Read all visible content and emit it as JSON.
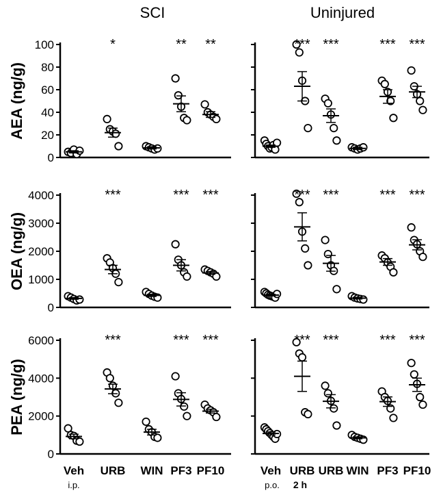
{
  "column_titles": [
    "SCI",
    "Uninjured"
  ],
  "notes": {
    "sci_route": "i.p.",
    "uninjured_route": "p.o.",
    "uninjured_time": "2 h"
  },
  "chart_data": [
    {
      "type": "scatter",
      "group": "SCI",
      "ylabel": "AEA (ng/g)",
      "ylim": [
        0,
        100
      ],
      "yticks": [
        "0",
        "20",
        "40",
        "60",
        "80",
        "100"
      ],
      "categories": [
        "Veh",
        "URB",
        "WIN",
        "PF3",
        "PF10"
      ],
      "points": [
        [
          5,
          4,
          7,
          3,
          6
        ],
        [
          34,
          25,
          23,
          21,
          10
        ],
        [
          10,
          9,
          8,
          7,
          8
        ],
        [
          70,
          55,
          45,
          35,
          33
        ],
        [
          47,
          40,
          38,
          36,
          34
        ]
      ],
      "mean": [
        5,
        22,
        8.5,
        47.5,
        38
      ],
      "sem": [
        1,
        4,
        1,
        7,
        2.5
      ],
      "significance": [
        "",
        "*",
        "",
        "**",
        "**"
      ]
    },
    {
      "type": "scatter",
      "group": "Uninjured",
      "ylabel": "AEA (ng/g)",
      "ylim": [
        0,
        100
      ],
      "yticks": [
        "0",
        "20",
        "40",
        "60",
        "80",
        "100"
      ],
      "categories": [
        "Veh",
        "URB",
        "URB",
        "WIN",
        "PF3",
        "PF10"
      ],
      "points": [
        [
          15,
          12,
          10,
          8,
          9,
          11,
          7,
          13
        ],
        [
          100,
          93,
          68,
          50,
          26
        ],
        [
          52,
          48,
          38,
          26,
          15
        ],
        [
          9,
          8,
          7,
          8,
          9
        ],
        [
          68,
          65,
          58,
          50,
          35
        ],
        [
          77,
          63,
          56,
          50,
          42
        ]
      ],
      "mean": [
        10,
        63,
        37,
        8,
        54,
        58
      ],
      "sem": [
        1,
        13,
        6,
        1,
        6,
        5
      ],
      "significance": [
        "",
        "***",
        "***",
        "",
        "***",
        "***"
      ]
    },
    {
      "type": "scatter",
      "group": "SCI",
      "ylabel": "OEA (ng/g)",
      "ylim": [
        0,
        4000
      ],
      "yticks": [
        "0",
        "1000",
        "2000",
        "3000",
        "4000"
      ],
      "categories": [
        "Veh",
        "URB",
        "WIN",
        "PF3",
        "PF10"
      ],
      "points": [
        [
          400,
          350,
          300,
          250,
          280
        ],
        [
          1750,
          1600,
          1400,
          1200,
          900
        ],
        [
          550,
          480,
          420,
          380,
          350
        ],
        [
          2250,
          1700,
          1500,
          1250,
          1100
        ],
        [
          1350,
          1300,
          1250,
          1200,
          1100
        ]
      ],
      "mean": [
        320,
        1350,
        430,
        1500,
        1230
      ],
      "sem": [
        30,
        150,
        40,
        200,
        50
      ],
      "significance": [
        "",
        "***",
        "",
        "***",
        "***"
      ]
    },
    {
      "type": "scatter",
      "group": "Uninjured",
      "ylabel": "OEA (ng/g)",
      "ylim": [
        0,
        4000
      ],
      "yticks": [
        "0",
        "1000",
        "2000",
        "3000",
        "4000"
      ],
      "categories": [
        "Veh",
        "URB",
        "URB",
        "WIN",
        "PF3",
        "PF10"
      ],
      "points": [
        [
          550,
          500,
          450,
          420,
          400,
          380,
          350,
          480
        ],
        [
          4050,
          3750,
          2700,
          2100,
          1500
        ],
        [
          2400,
          1900,
          1500,
          1300,
          650
        ],
        [
          400,
          350,
          320,
          300,
          280
        ],
        [
          1850,
          1750,
          1600,
          1450,
          1250
        ],
        [
          2850,
          2400,
          2250,
          2000,
          1800
        ]
      ],
      "mean": [
        440,
        2870,
        1570,
        330,
        1620,
        2230
      ],
      "sem": [
        30,
        500,
        280,
        30,
        120,
        180
      ],
      "significance": [
        "",
        "***",
        "***",
        "",
        "***",
        "***"
      ]
    },
    {
      "type": "scatter",
      "group": "SCI",
      "ylabel": "PEA (ng/g)",
      "ylim": [
        0,
        6000
      ],
      "yticks": [
        "0",
        "2000",
        "4000",
        "6000"
      ],
      "categories": [
        "Veh",
        "URB",
        "WIN",
        "PF3",
        "PF10"
      ],
      "points": [
        [
          1350,
          1000,
          950,
          700,
          650
        ],
        [
          4300,
          4000,
          3600,
          3200,
          2700
        ],
        [
          1700,
          1300,
          1150,
          900,
          850
        ],
        [
          4100,
          3200,
          2900,
          2500,
          2000
        ],
        [
          2600,
          2400,
          2300,
          2200,
          1950
        ]
      ],
      "mean": [
        920,
        3430,
        1150,
        2880,
        2260
      ],
      "sem": [
        120,
        250,
        150,
        350,
        100
      ],
      "significance": [
        "",
        "***",
        "",
        "***",
        "***"
      ]
    },
    {
      "type": "scatter",
      "group": "Uninjured",
      "ylabel": "PEA (ng/g)",
      "ylim": [
        0,
        6000
      ],
      "yticks": [
        "0",
        "2000",
        "4000",
        "6000"
      ],
      "categories": [
        "Veh",
        "URB",
        "URB",
        "WIN",
        "PF3",
        "PF10"
      ],
      "points": [
        [
          1400,
          1300,
          1200,
          1100,
          1000,
          900,
          800,
          1050
        ],
        [
          5900,
          5300,
          5100,
          2200,
          2100
        ],
        [
          3600,
          3200,
          2800,
          2400,
          1500
        ],
        [
          1000,
          900,
          850,
          800,
          750
        ],
        [
          3300,
          3000,
          2800,
          2400,
          1900
        ],
        [
          4800,
          4200,
          3700,
          3000,
          2600
        ]
      ],
      "mean": [
        1080,
        4100,
        2780,
        850,
        2760,
        3650
      ],
      "sem": [
        80,
        800,
        350,
        50,
        250,
        350
      ],
      "significance": [
        "",
        "***",
        "***",
        "",
        "***",
        "***"
      ]
    }
  ]
}
